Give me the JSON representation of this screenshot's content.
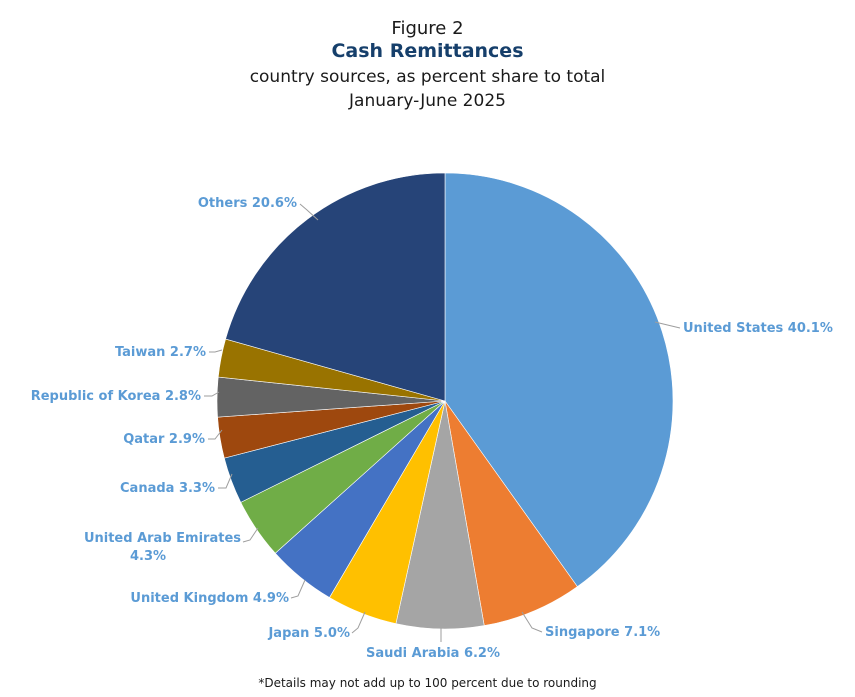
{
  "figure_label": "Figure 2",
  "footnote": "*Details may not add up to 100 percent due to rounding",
  "chart_data": {
    "type": "pie",
    "title": "Cash Remittances",
    "subtitle": "country sources, as percent share to total",
    "period": "January-June 2025",
    "slices": [
      {
        "label": "United States",
        "value": 40.1,
        "color": "#5b9bd5",
        "text": "United States 40.1%"
      },
      {
        "label": "Singapore",
        "value": 7.1,
        "color": "#ed7d31",
        "text": "Singapore 7.1%"
      },
      {
        "label": "Saudi Arabia",
        "value": 6.2,
        "color": "#a5a5a5",
        "text": "Saudi Arabia 6.2%"
      },
      {
        "label": "Japan",
        "value": 5.0,
        "color": "#ffc000",
        "text": "Japan 5.0%"
      },
      {
        "label": "United Kingdom",
        "value": 4.9,
        "color": "#4472c4",
        "text": "United Kingdom 4.9%"
      },
      {
        "label": "United Arab Emirates",
        "value": 4.3,
        "color": "#70ad47",
        "text_lines": [
          "United Arab Emirates",
          "4.3%"
        ]
      },
      {
        "label": "Canada",
        "value": 3.3,
        "color": "#255e91",
        "text": "Canada 3.3%"
      },
      {
        "label": "Qatar",
        "value": 2.9,
        "color": "#9e480e",
        "text": "Qatar 2.9%"
      },
      {
        "label": "Republic of Korea",
        "value": 2.8,
        "color": "#636363",
        "text": "Republic of Korea 2.8%"
      },
      {
        "label": "Taiwan",
        "value": 2.7,
        "color": "#997300",
        "text": "Taiwan 2.7%"
      },
      {
        "label": "Others",
        "value": 20.6,
        "color": "#264478",
        "text": "Others 20.6%"
      }
    ]
  }
}
